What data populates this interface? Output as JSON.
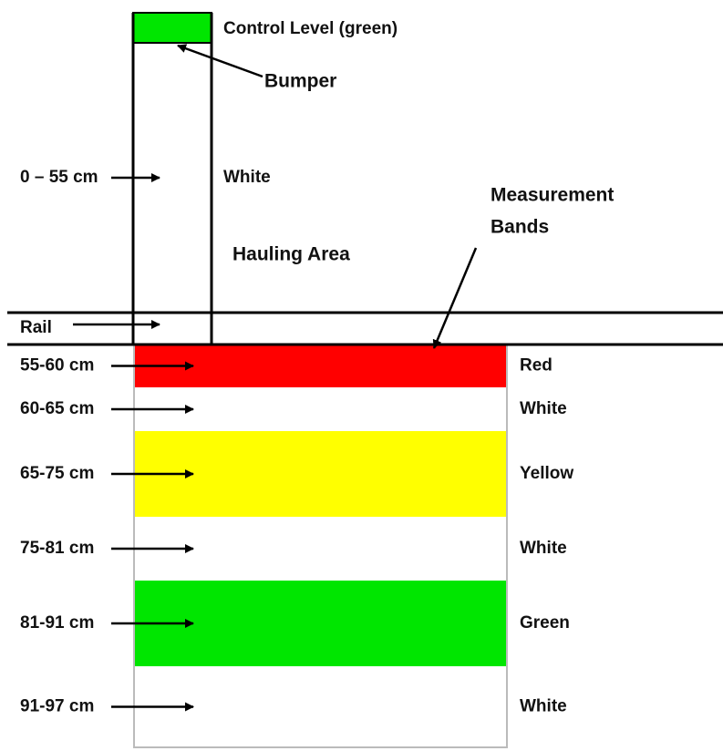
{
  "labels": {
    "control_level": "Control Level (green)",
    "bumper": "Bumper",
    "post_range": "0 – 55 cm",
    "post_color": "White",
    "hauling_area": "Hauling Area",
    "measurement_bands": [
      "Measurement",
      "Bands"
    ],
    "rail": "Rail"
  },
  "bands": [
    {
      "range": "55-60 cm",
      "color_name": "Red",
      "fill": "#ff0000"
    },
    {
      "range": "60-65 cm",
      "color_name": "White",
      "fill": "#ffffff"
    },
    {
      "range": "65-75 cm",
      "color_name": "Yellow",
      "fill": "#ffff00"
    },
    {
      "range": "75-81 cm",
      "color_name": "White",
      "fill": "#ffffff"
    },
    {
      "range": "81-91 cm",
      "color_name": "Green",
      "fill": "#00e600"
    },
    {
      "range": "91-97 cm",
      "color_name": "White",
      "fill": "#ffffff"
    }
  ]
}
